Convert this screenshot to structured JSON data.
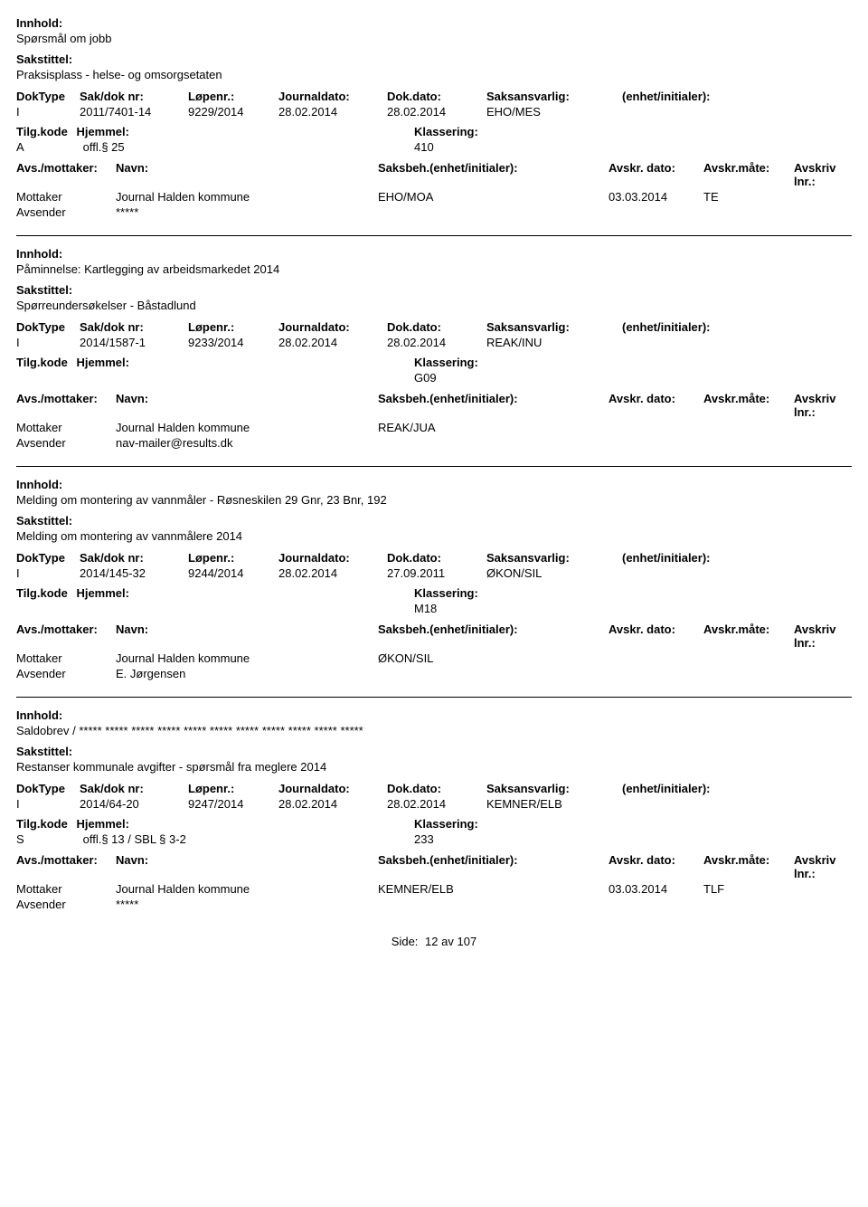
{
  "labels": {
    "innhold": "Innhold:",
    "sakstittel": "Sakstittel:",
    "doktype": "DokType",
    "sakdok": "Sak/dok nr:",
    "lopenr": "Løpenr.:",
    "journaldato": "Journaldato:",
    "dokdato": "Dok.dato:",
    "saksansvarlig": "Saksansvarlig:",
    "enhet": "(enhet/initialer):",
    "tilgkode": "Tilg.kode",
    "hjemmel": "Hjemmel:",
    "klassering": "Klassering:",
    "avsmottaker": "Avs./mottaker:",
    "navn": "Navn:",
    "saksbeh": "Saksbeh.(enhet/initialer):",
    "avskrdato": "Avskr. dato:",
    "avskrmate": "Avskr.måte:",
    "avskrivlnr": "Avskriv lnr.:",
    "mottaker": "Mottaker",
    "avsender": "Avsender"
  },
  "records": [
    {
      "innhold": "Spørsmål om jobb",
      "sakstittel": "Praksisplass - helse- og omsorgsetaten",
      "doktype": "I",
      "sakdok": "2011/7401-14",
      "lopenr": "9229/2014",
      "jdato": "28.02.2014",
      "ddato": "28.02.2014",
      "saksansvarlig": "EHO/MES",
      "tilgkode": "A",
      "hjemmel": "offl.§ 25",
      "klassering": "410",
      "mottaker_navn": "Journal Halden kommune",
      "saksbeh": "EHO/MOA",
      "avskrdato": "03.03.2014",
      "avskrmate": "TE",
      "avsender_navn": "*****"
    },
    {
      "innhold": "Påminnelse: Kartlegging av arbeidsmarkedet 2014",
      "sakstittel": "Spørreundersøkelser - Båstadlund",
      "doktype": "I",
      "sakdok": "2014/1587-1",
      "lopenr": "9233/2014",
      "jdato": "28.02.2014",
      "ddato": "28.02.2014",
      "saksansvarlig": "REAK/INU",
      "tilgkode": "",
      "hjemmel": "",
      "klassering": "G09",
      "mottaker_navn": "Journal Halden kommune",
      "saksbeh": "REAK/JUA",
      "avskrdato": "",
      "avskrmate": "",
      "avsender_navn": "nav-mailer@results.dk"
    },
    {
      "innhold": "Melding om montering av vannmåler - Røsneskilen 29 Gnr, 23 Bnr, 192",
      "sakstittel": "Melding om montering av vannmålere 2014",
      "doktype": "I",
      "sakdok": "2014/145-32",
      "lopenr": "9244/2014",
      "jdato": "28.02.2014",
      "ddato": "27.09.2011",
      "saksansvarlig": "ØKON/SIL",
      "tilgkode": "",
      "hjemmel": "",
      "klassering": "M18",
      "mottaker_navn": "Journal Halden kommune",
      "saksbeh": "ØKON/SIL",
      "avskrdato": "",
      "avskrmate": "",
      "avsender_navn": "E. Jørgensen"
    },
    {
      "innhold": "Saldobrev / ***** ***** ***** ***** ***** ***** ***** ***** ***** ***** *****",
      "sakstittel": "Restanser kommunale avgifter - spørsmål fra meglere 2014",
      "doktype": "I",
      "sakdok": "2014/64-20",
      "lopenr": "9247/2014",
      "jdato": "28.02.2014",
      "ddato": "28.02.2014",
      "saksansvarlig": "KEMNER/ELB",
      "tilgkode": "S",
      "hjemmel": "offl.§ 13 / SBL § 3-2",
      "klassering": "233",
      "mottaker_navn": "Journal Halden kommune",
      "saksbeh": "KEMNER/ELB",
      "avskrdato": "03.03.2014",
      "avskrmate": "TLF",
      "avsender_navn": "*****"
    }
  ],
  "footer": {
    "side_label": "Side:",
    "page": "12",
    "av": "av",
    "total": "107"
  }
}
